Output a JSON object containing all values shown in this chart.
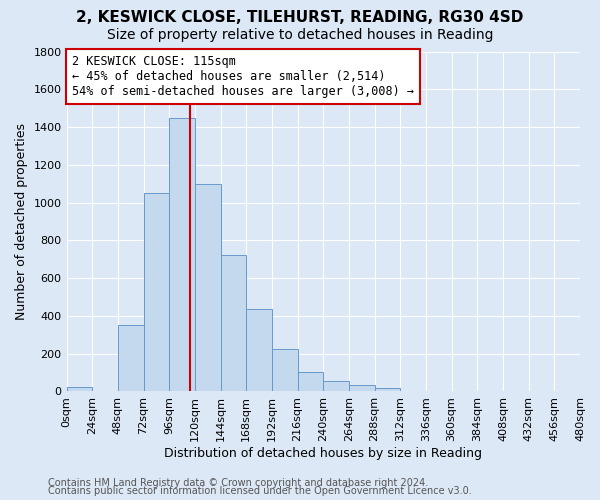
{
  "title": "2, KESWICK CLOSE, TILEHURST, READING, RG30 4SD",
  "subtitle": "Size of property relative to detached houses in Reading",
  "xlabel": "Distribution of detached houses by size in Reading",
  "ylabel": "Number of detached properties",
  "bin_edges": [
    0,
    24,
    48,
    72,
    96,
    120,
    144,
    168,
    192,
    216,
    240,
    264,
    288,
    312,
    336,
    360,
    384,
    408,
    432,
    456,
    480
  ],
  "bar_heights": [
    25,
    0,
    350,
    1050,
    1450,
    1100,
    720,
    435,
    225,
    105,
    55,
    35,
    20,
    5,
    2,
    0,
    0,
    0,
    0,
    0
  ],
  "bar_color": "#c5d9ee",
  "bar_edge_color": "#6699cc",
  "property_size": 115,
  "vline_color": "#cc0000",
  "annotation_line1": "2 KESWICK CLOSE: 115sqm",
  "annotation_line2": "← 45% of detached houses are smaller (2,514)",
  "annotation_line3": "54% of semi-detached houses are larger (3,008) →",
  "annotation_box_color": "#cc0000",
  "annotation_bg": "#ffffff",
  "ylim": [
    0,
    1800
  ],
  "yticks": [
    0,
    200,
    400,
    600,
    800,
    1000,
    1200,
    1400,
    1600,
    1800
  ],
  "footer_line1": "Contains HM Land Registry data © Crown copyright and database right 2024.",
  "footer_line2": "Contains public sector information licensed under the Open Government Licence v3.0.",
  "background_color": "#dce8f5",
  "plot_bg_color": "#dce8f5",
  "grid_color": "#ffffff",
  "title_fontsize": 11,
  "subtitle_fontsize": 10,
  "axis_label_fontsize": 9,
  "tick_fontsize": 8,
  "annotation_fontsize": 8.5,
  "footer_fontsize": 7
}
